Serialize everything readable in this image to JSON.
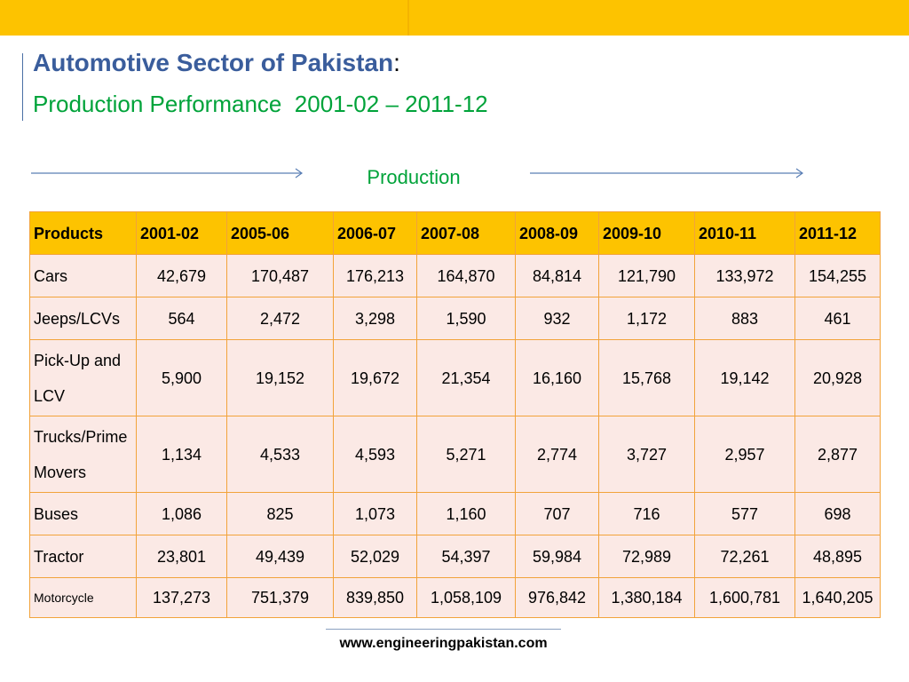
{
  "header": {
    "title": "Automotive Sector of Pakistan",
    "title_colon": ":",
    "subtitle": "Production Performance  2001-02 – 2011-12"
  },
  "section_label": "Production",
  "table": {
    "header": [
      "Products",
      "2001-02",
      "2005-06",
      "2006-07",
      "2007-08",
      "2008-09",
      "2009-10",
      "2010-11",
      "2011-12"
    ],
    "rows": [
      [
        "Cars",
        "42,679",
        "170,487",
        "176,213",
        "164,870",
        "84,814",
        "121,790",
        "133,972",
        "154,255"
      ],
      [
        "Jeeps/LCVs",
        "564",
        "2,472",
        "3,298",
        "1,590",
        "932",
        "1,172",
        "883",
        "461"
      ],
      [
        "Pick-Up and LCV",
        "5,900",
        "19,152",
        "19,672",
        "21,354",
        "16,160",
        "15,768",
        "19,142",
        "20,928"
      ],
      [
        "Trucks/Prime Movers",
        "1,134",
        "4,533",
        "4,593",
        "5,271",
        "2,774",
        "3,727",
        "2,957",
        "2,877"
      ],
      [
        "Buses",
        "1,086",
        "825",
        "1,073",
        "1,160",
        "707",
        "716",
        "577",
        "698"
      ],
      [
        "Tractor",
        "23,801",
        "49,439",
        "52,029",
        "54,397",
        "59,984",
        "72,989",
        "72,261",
        "48,895"
      ],
      [
        "Motorcycle",
        "137,273",
        "751,379",
        "839,850",
        "1,058,109",
        "976,842",
        "1,380,184",
        "1,600,781",
        "1,640,205"
      ]
    ]
  },
  "footer": "www.engineeringpakistan.com"
}
